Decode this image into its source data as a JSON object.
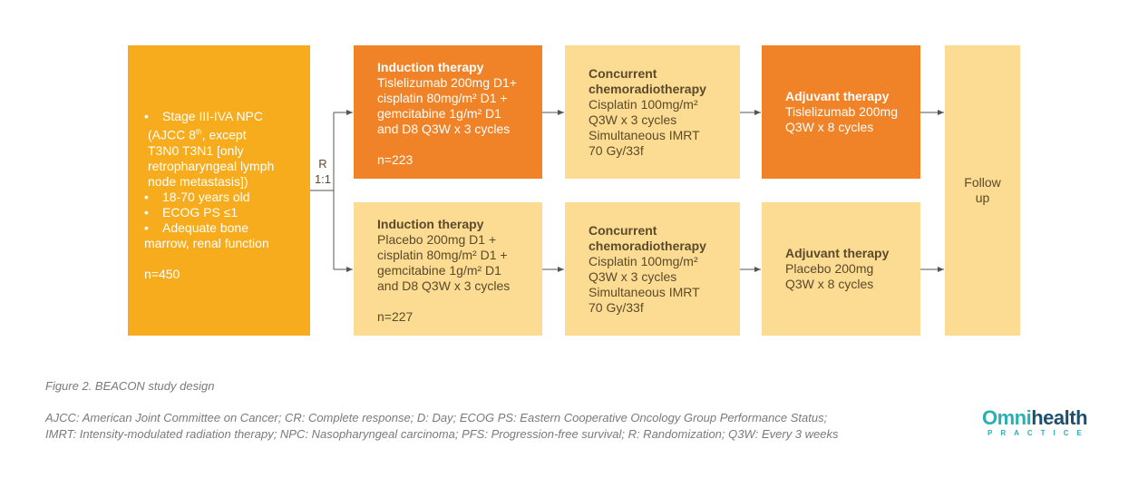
{
  "eligibility": {
    "bullets": [
      "Stage III-IVA NPC",
      "18-70 years old",
      "ECOG PS ≤1",
      "Adequate bone"
    ],
    "stage_continuation": [
      "(AJCC 8",
      "th",
      ", except",
      "T3N0 T3N1 [only",
      "retropharyngeal lymph",
      "node metastasis])"
    ],
    "bone_continuation": "marrow, renal function",
    "n": "n=450"
  },
  "randomization": {
    "label": "R",
    "ratio": "1:1"
  },
  "arms": [
    {
      "induction": {
        "title": "Induction therapy",
        "lines": [
          "Tislelizumab 200mg D1+",
          "cisplatin 80mg/m² D1 +",
          "gemcitabine 1g/m² D1",
          "and D8 Q3W x 3 cycles"
        ],
        "n": "n=223"
      },
      "crt": {
        "title": [
          "Concurrent",
          "chemoradiotherapy"
        ],
        "lines": [
          "Cisplatin 100mg/m²",
          "Q3W x 3 cycles",
          "Simultaneous IMRT",
          "70 Gy/33f"
        ]
      },
      "adjuvant": {
        "title": "Adjuvant therapy",
        "lines": [
          "Tislelizumab 200mg",
          "Q3W x 8 cycles"
        ]
      }
    },
    {
      "induction": {
        "title": "Induction therapy",
        "lines": [
          "Placebo 200mg D1 +",
          "cisplatin 80mg/m² D1 +",
          "gemcitabine 1g/m² D1",
          "and D8 Q3W x 3 cycles"
        ],
        "n": "n=227"
      },
      "crt": {
        "title": [
          "Concurrent",
          "chemoradiotherapy"
        ],
        "lines": [
          "Cisplatin 100mg/m²",
          "Q3W x 3 cycles",
          "Simultaneous IMRT",
          "70 Gy/33f"
        ]
      },
      "adjuvant": {
        "title": "Adjuvant therapy",
        "lines": [
          "Placebo 200mg",
          "Q3W x 8 cycles"
        ]
      }
    }
  ],
  "followup": [
    "Follow",
    "up"
  ],
  "caption": "Figure 2. BEACON study design",
  "abbreviations": [
    "AJCC: American Joint Committee on Cancer; CR: Complete response; D: Day; ECOG PS: Eastern Cooperative Oncology Group Performance Status;",
    "IMRT: Intensity-modulated radiation therapy; NPC: Nasopharyngeal carcinoma; PFS: Progression-free survival; R: Randomization; Q3W: Every 3 weeks"
  ],
  "logo": {
    "brand": "Omni",
    "brand_accent": "health",
    "sub": "PRACTICE"
  },
  "colors": {
    "orange": "#f08227",
    "gold": "#f7ac1e",
    "pale": "#fbdc92",
    "arrow": "#555555"
  }
}
